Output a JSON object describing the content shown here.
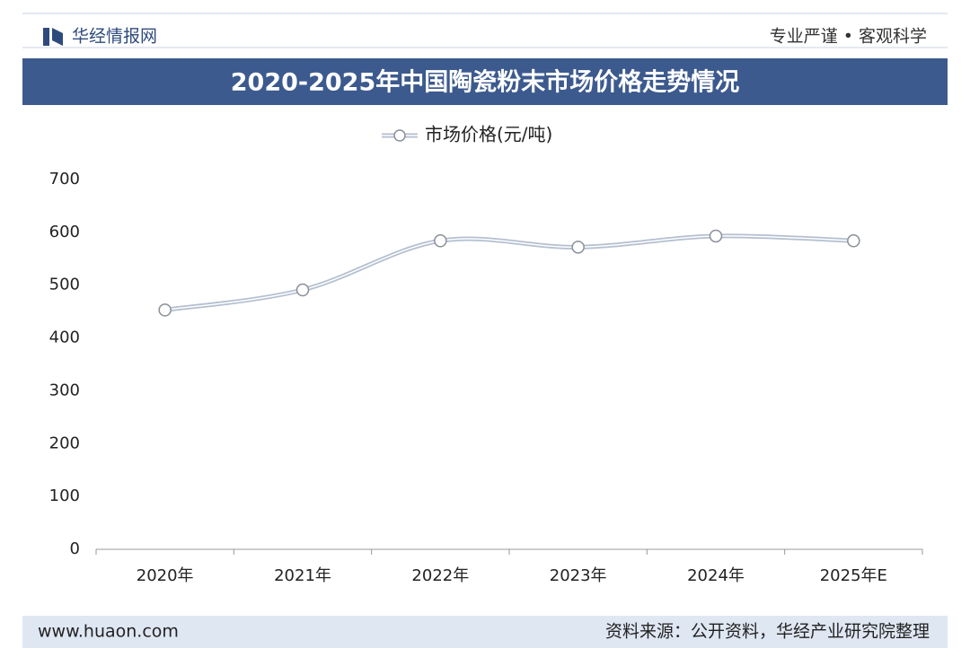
{
  "header": {
    "brand": "华经情报网",
    "slogan": "专业严谨 • 客观科学"
  },
  "chart_data": {
    "type": "line",
    "title": "2020-2025年中国陶瓷粉末市场价格走势情况",
    "categories": [
      "2020年",
      "2021年",
      "2022年",
      "2023年",
      "2024年",
      "2025年E"
    ],
    "series": [
      {
        "name": "市场价格(元/吨)",
        "color": "#b4bfd0",
        "values": [
          453,
          491,
          584,
          572,
          593,
          584
        ]
      }
    ],
    "ylim": [
      0,
      700
    ],
    "yticks": [
      0,
      100,
      200,
      300,
      400,
      500,
      600,
      700
    ],
    "grid": false,
    "legend": "top"
  },
  "footer": {
    "website": "www.huaon.com",
    "source": "资料来源：公开资料，华经产业研究院整理"
  }
}
